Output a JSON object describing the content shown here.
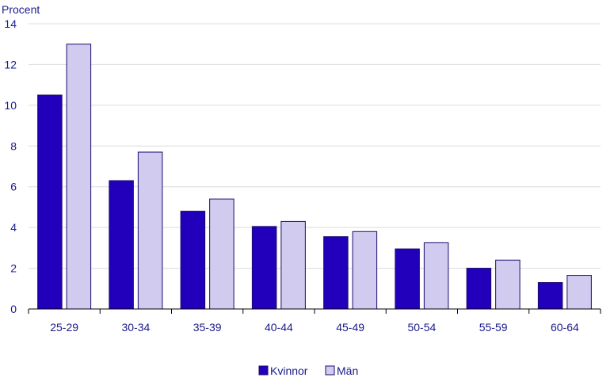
{
  "chart_data": {
    "type": "bar",
    "y_unit_label": "Procent",
    "categories": [
      "25-29",
      "30-34",
      "35-39",
      "40-44",
      "45-49",
      "50-54",
      "55-59",
      "60-64"
    ],
    "series": [
      {
        "name": "Kvinnor",
        "color": "#2200bb",
        "values": [
          10.5,
          6.3,
          4.8,
          4.05,
          3.55,
          2.95,
          2.0,
          1.3
        ]
      },
      {
        "name": "Män",
        "color": "#d1cbef",
        "values": [
          13.0,
          7.7,
          5.4,
          4.3,
          3.8,
          3.25,
          2.4,
          1.65
        ]
      }
    ],
    "ylim": [
      0,
      14
    ],
    "yticks": [
      0,
      2,
      4,
      6,
      8,
      10,
      12,
      14
    ],
    "grid": true,
    "legend_position": "bottom-center"
  }
}
